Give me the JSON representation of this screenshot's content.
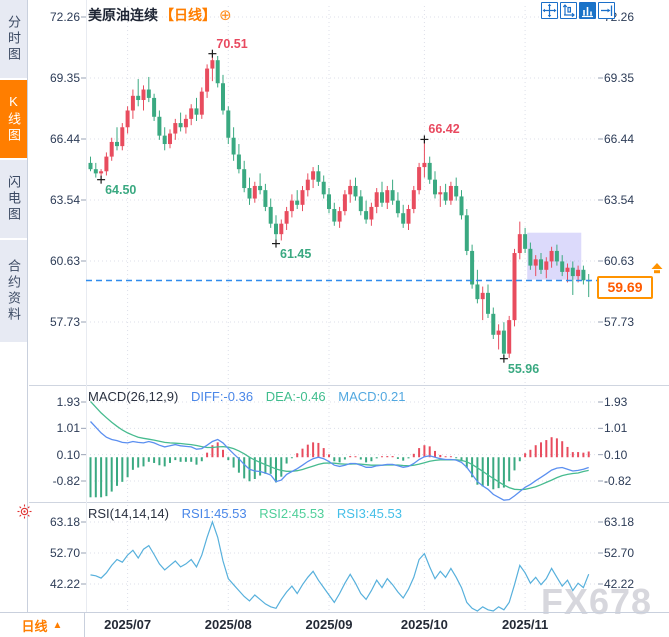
{
  "sidebar": {
    "tabs": [
      {
        "label": "分时图",
        "active": false
      },
      {
        "label": "K线图",
        "active": true
      },
      {
        "label": "闪电图",
        "active": false
      },
      {
        "label": "合约资料",
        "active": false
      }
    ]
  },
  "header": {
    "symbol": "美原油连续",
    "period": "【日线】",
    "plus_glyph": "⊕"
  },
  "toolbar": {
    "icons": [
      {
        "name": "crosshair",
        "active": false
      },
      {
        "name": "fit-scale",
        "active": false
      },
      {
        "name": "column-chart",
        "active": true
      },
      {
        "name": "pan-right",
        "active": false
      }
    ]
  },
  "indicators": {
    "macd": {
      "params": "MACD(26,12,9)",
      "diff": "DIFF:-0.36",
      "dea": "DEA:-0.46",
      "macd": "MACD:0.21"
    },
    "rsi": {
      "params": "RSI(14,14,14)",
      "rsi1": "RSI1:45.53",
      "rsi2": "RSI2:45.53",
      "rsi3": "RSI3:45.53"
    }
  },
  "price_axis": {
    "current": "59.69"
  },
  "bottom_bar": {
    "label": "日线",
    "arrow": "▲"
  },
  "watermark": {
    "text": "FX678"
  },
  "colors": {
    "up": "#e84c5e",
    "down": "#3aa981",
    "diff_line": "#5b8ff0",
    "dea_line": "#47bb8f",
    "rsi_line": "#57b0dc",
    "accent_orange": "#ff7e00",
    "dashed_line": "#2f8ced",
    "annotation_red": "#e8495f",
    "annotation_green": "#3aa981",
    "highlight_box": "rgba(129,122,240,0.28)",
    "toolbar_blue": "#1a6fc9",
    "alert_red": "#e03131"
  },
  "chart_data": [
    {
      "type": "candlestick",
      "title": "美原油连续 日线",
      "y_ticks": [
        "72.26",
        "69.35",
        "66.44",
        "63.54",
        "60.63",
        "57.73"
      ],
      "x_ticks": [
        {
          "label": "2025/07",
          "index": 7
        },
        {
          "label": "2025/08",
          "index": 26
        },
        {
          "label": "2025/09",
          "index": 45
        },
        {
          "label": "2025/10",
          "index": 63
        },
        {
          "label": "2025/11",
          "index": 82
        }
      ],
      "current_price": 59.69,
      "annotations": [
        {
          "text": "70.51",
          "price": 70.51,
          "index": 23,
          "side": "above",
          "color": "#e8495f"
        },
        {
          "text": "66.42",
          "price": 66.42,
          "index": 63,
          "side": "above",
          "color": "#e8495f"
        },
        {
          "text": "64.50",
          "price": 64.5,
          "index": 2,
          "side": "below",
          "color": "#3aa981"
        },
        {
          "text": "61.45",
          "price": 61.45,
          "index": 35,
          "side": "below",
          "color": "#3aa981"
        },
        {
          "text": "55.96",
          "price": 55.96,
          "index": 78,
          "side": "below",
          "color": "#3aa981"
        }
      ],
      "highlight_box": {
        "from_index": 82.4,
        "to_index": 92.6,
        "price_top": 61.97,
        "price_bottom": 59.73
      },
      "candles": [
        [
          65.3,
          65.6,
          64.9,
          65.0
        ],
        [
          65.0,
          65.3,
          64.6,
          64.8
        ],
        [
          64.8,
          65.0,
          64.5,
          64.9
        ],
        [
          64.9,
          65.8,
          64.7,
          65.6
        ],
        [
          65.6,
          66.5,
          65.4,
          66.3
        ],
        [
          66.3,
          67.0,
          65.9,
          66.1
        ],
        [
          66.1,
          67.2,
          65.9,
          67.0
        ],
        [
          67.0,
          68.0,
          66.7,
          67.8
        ],
        [
          67.8,
          68.8,
          67.4,
          68.5
        ],
        [
          68.5,
          69.3,
          68.0,
          68.3
        ],
        [
          68.3,
          69.0,
          67.8,
          68.8
        ],
        [
          68.8,
          69.4,
          68.2,
          68.4
        ],
        [
          68.4,
          68.6,
          67.3,
          67.5
        ],
        [
          67.5,
          67.8,
          66.4,
          66.6
        ],
        [
          66.6,
          67.0,
          65.9,
          66.2
        ],
        [
          66.2,
          66.9,
          66.0,
          66.7
        ],
        [
          66.7,
          67.4,
          66.4,
          67.2
        ],
        [
          67.2,
          67.7,
          66.8,
          67.0
        ],
        [
          67.0,
          67.6,
          66.7,
          67.4
        ],
        [
          67.4,
          68.1,
          67.1,
          67.9
        ],
        [
          67.9,
          68.4,
          67.3,
          67.6
        ],
        [
          67.6,
          68.9,
          67.4,
          68.7
        ],
        [
          68.7,
          70.0,
          68.4,
          69.8
        ],
        [
          69.8,
          70.51,
          69.2,
          70.2
        ],
        [
          70.2,
          70.4,
          68.9,
          69.1
        ],
        [
          69.1,
          69.5,
          67.6,
          67.8
        ],
        [
          67.8,
          68.0,
          66.2,
          66.5
        ],
        [
          66.5,
          67.0,
          65.4,
          65.7
        ],
        [
          65.7,
          66.2,
          64.8,
          65.0
        ],
        [
          65.0,
          65.4,
          63.9,
          64.1
        ],
        [
          64.1,
          64.6,
          63.3,
          63.6
        ],
        [
          63.6,
          64.4,
          63.4,
          64.2
        ],
        [
          64.2,
          64.8,
          63.8,
          64.0
        ],
        [
          64.0,
          64.3,
          63.0,
          63.2
        ],
        [
          63.2,
          63.6,
          62.2,
          62.4
        ],
        [
          62.4,
          62.8,
          61.45,
          61.9
        ],
        [
          61.9,
          62.6,
          61.6,
          62.4
        ],
        [
          62.4,
          63.2,
          62.1,
          63.0
        ],
        [
          63.0,
          63.8,
          62.7,
          63.5
        ],
        [
          63.5,
          64.0,
          63.1,
          63.3
        ],
        [
          63.3,
          64.2,
          63.0,
          64.0
        ],
        [
          64.0,
          64.8,
          63.7,
          64.5
        ],
        [
          64.5,
          65.1,
          64.1,
          64.9
        ],
        [
          64.9,
          65.2,
          64.2,
          64.4
        ],
        [
          64.4,
          64.7,
          63.6,
          63.8
        ],
        [
          63.8,
          64.1,
          62.9,
          63.1
        ],
        [
          63.1,
          63.4,
          62.3,
          62.5
        ],
        [
          62.5,
          63.2,
          62.2,
          63.0
        ],
        [
          63.0,
          64.0,
          62.8,
          63.8
        ],
        [
          63.8,
          64.5,
          63.4,
          64.2
        ],
        [
          64.2,
          64.6,
          63.5,
          63.7
        ],
        [
          63.7,
          64.0,
          62.8,
          63.0
        ],
        [
          63.0,
          63.5,
          62.4,
          62.6
        ],
        [
          62.6,
          63.4,
          62.3,
          63.2
        ],
        [
          63.2,
          64.1,
          62.9,
          63.9
        ],
        [
          63.9,
          64.4,
          63.2,
          63.4
        ],
        [
          63.4,
          64.2,
          63.1,
          64.0
        ],
        [
          64.0,
          64.5,
          63.3,
          63.5
        ],
        [
          63.5,
          63.9,
          62.7,
          62.9
        ],
        [
          62.9,
          63.3,
          62.2,
          62.4
        ],
        [
          62.4,
          63.3,
          62.1,
          63.1
        ],
        [
          63.1,
          64.2,
          62.9,
          64.0
        ],
        [
          64.0,
          65.3,
          63.8,
          65.1
        ],
        [
          65.1,
          66.42,
          64.6,
          65.3
        ],
        [
          65.3,
          65.6,
          64.3,
          64.5
        ],
        [
          64.5,
          64.9,
          63.6,
          63.8
        ],
        [
          63.8,
          64.2,
          63.2,
          63.9
        ],
        [
          63.9,
          64.3,
          63.3,
          63.5
        ],
        [
          63.5,
          64.4,
          63.3,
          64.2
        ],
        [
          64.2,
          64.6,
          63.5,
          63.7
        ],
        [
          63.7,
          64.0,
          62.6,
          62.8
        ],
        [
          62.8,
          63.1,
          60.9,
          61.1
        ],
        [
          61.1,
          61.4,
          59.3,
          59.5
        ],
        [
          59.5,
          60.2,
          58.6,
          58.8
        ],
        [
          58.8,
          59.4,
          57.8,
          59.1
        ],
        [
          59.1,
          59.5,
          57.9,
          58.1
        ],
        [
          58.1,
          58.4,
          56.9,
          57.1
        ],
        [
          57.1,
          57.6,
          56.4,
          57.3
        ],
        [
          57.3,
          57.7,
          55.96,
          56.2
        ],
        [
          56.2,
          58.0,
          56.0,
          57.8
        ],
        [
          57.8,
          61.2,
          57.5,
          61.0
        ],
        [
          61.0,
          62.5,
          60.7,
          61.9
        ],
        [
          61.9,
          62.2,
          61.0,
          61.2
        ],
        [
          61.2,
          61.5,
          60.2,
          60.4
        ],
        [
          60.4,
          60.9,
          59.9,
          60.7
        ],
        [
          60.7,
          61.0,
          60.0,
          60.2
        ],
        [
          60.2,
          60.8,
          59.8,
          60.6
        ],
        [
          60.6,
          61.3,
          60.3,
          61.1
        ],
        [
          61.1,
          61.4,
          60.4,
          60.6
        ],
        [
          60.6,
          60.9,
          59.9,
          60.1
        ],
        [
          60.1,
          60.5,
          59.6,
          60.3
        ],
        [
          60.3,
          60.6,
          59.0,
          59.9
        ],
        [
          59.9,
          60.4,
          59.6,
          60.2
        ],
        [
          60.2,
          60.4,
          59.5,
          59.7
        ],
        [
          59.7,
          60.0,
          58.9,
          59.69
        ]
      ]
    },
    {
      "type": "macd",
      "y_ticks": [
        "1.93",
        "1.01",
        "0.10",
        "-0.82"
      ],
      "diff": [
        1.25,
        1.05,
        0.85,
        0.7,
        0.62,
        0.58,
        0.52,
        0.5,
        0.55,
        0.52,
        0.5,
        0.55,
        0.5,
        0.42,
        0.36,
        0.4,
        0.44,
        0.4,
        0.38,
        0.36,
        0.28,
        0.3,
        0.42,
        0.55,
        0.62,
        0.5,
        0.3,
        0.12,
        -0.05,
        -0.25,
        -0.42,
        -0.48,
        -0.5,
        -0.55,
        -0.62,
        -0.85,
        -0.8,
        -0.6,
        -0.5,
        -0.4,
        -0.28,
        -0.15,
        -0.05,
        0.0,
        -0.05,
        -0.15,
        -0.28,
        -0.32,
        -0.28,
        -0.22,
        -0.22,
        -0.28,
        -0.35,
        -0.35,
        -0.3,
        -0.28,
        -0.25,
        -0.25,
        -0.3,
        -0.35,
        -0.32,
        -0.22,
        -0.08,
        0.02,
        0.05,
        0.0,
        -0.05,
        -0.08,
        -0.08,
        -0.1,
        -0.18,
        -0.35,
        -0.6,
        -0.85,
        -1.0,
        -1.12,
        -1.3,
        -1.4,
        -1.5,
        -1.48,
        -1.35,
        -1.2,
        -1.05,
        -0.95,
        -0.82,
        -0.7,
        -0.58,
        -0.45,
        -0.38,
        -0.36,
        -0.42,
        -0.48,
        -0.46,
        -0.42,
        -0.36
      ],
      "dea": [
        1.95,
        1.75,
        1.55,
        1.38,
        1.22,
        1.08,
        0.95,
        0.85,
        0.77,
        0.7,
        0.66,
        0.63,
        0.6,
        0.56,
        0.52,
        0.5,
        0.49,
        0.48,
        0.46,
        0.44,
        0.41,
        0.37,
        0.34,
        0.34,
        0.36,
        0.37,
        0.35,
        0.3,
        0.22,
        0.12,
        0.0,
        -0.1,
        -0.18,
        -0.26,
        -0.33,
        -0.41,
        -0.46,
        -0.49,
        -0.49,
        -0.47,
        -0.43,
        -0.37,
        -0.31,
        -0.25,
        -0.21,
        -0.2,
        -0.21,
        -0.23,
        -0.24,
        -0.24,
        -0.23,
        -0.24,
        -0.26,
        -0.28,
        -0.28,
        -0.28,
        -0.27,
        -0.27,
        -0.27,
        -0.29,
        -0.3,
        -0.28,
        -0.24,
        -0.19,
        -0.14,
        -0.11,
        -0.09,
        -0.09,
        -0.09,
        -0.09,
        -0.11,
        -0.16,
        -0.25,
        -0.37,
        -0.49,
        -0.62,
        -0.74,
        -0.86,
        -0.97,
        -1.06,
        -1.12,
        -1.13,
        -1.12,
        -1.08,
        -1.03,
        -0.96,
        -0.88,
        -0.8,
        -0.71,
        -0.64,
        -0.6,
        -0.57,
        -0.55,
        -0.5,
        -0.46
      ]
    },
    {
      "type": "line",
      "y_ticks": [
        "63.18",
        "52.70",
        "42.22"
      ],
      "values": [
        45.3,
        45.0,
        44.2,
        46.0,
        48.5,
        50.5,
        49.6,
        52.0,
        53.6,
        51.0,
        54.0,
        55.2,
        52.2,
        49.0,
        47.0,
        48.5,
        50.0,
        48.0,
        49.0,
        50.5,
        48.0,
        52.0,
        58.0,
        63.2,
        58.0,
        50.0,
        44.0,
        42.0,
        40.0,
        38.0,
        36.5,
        38.5,
        37.0,
        35.5,
        34.5,
        34.0,
        37.0,
        39.5,
        41.5,
        39.0,
        42.0,
        44.5,
        46.5,
        43.5,
        41.0,
        38.5,
        36.0,
        39.0,
        42.5,
        45.5,
        42.5,
        39.0,
        37.0,
        40.0,
        43.5,
        41.0,
        44.0,
        42.0,
        39.5,
        37.5,
        40.5,
        44.5,
        50.5,
        52.5,
        48.0,
        44.0,
        46.5,
        44.5,
        47.5,
        44.5,
        41.0,
        36.0,
        34.0,
        33.0,
        34.5,
        33.5,
        33.0,
        34.5,
        33.5,
        36.0,
        42.0,
        48.5,
        46.0,
        42.5,
        44.5,
        42.0,
        44.0,
        47.5,
        44.5,
        41.5,
        43.5,
        40.0,
        42.5,
        41.0,
        45.53
      ]
    }
  ]
}
